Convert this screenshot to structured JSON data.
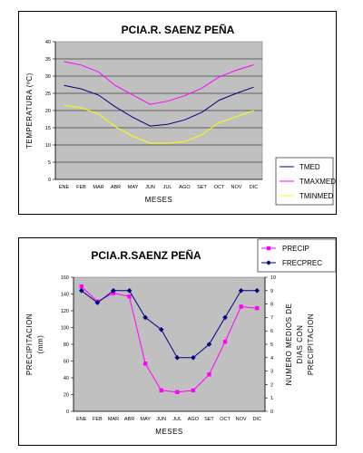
{
  "chart_data": [
    {
      "type": "line",
      "title": "PCIA.R. SAENZ PEÑA",
      "xlabel": "MESES",
      "ylabel": "TEMPERATURA (ºC)",
      "categories": [
        "ENE",
        "FEB",
        "MAR",
        "ABR",
        "MAY",
        "JUN",
        "JUL",
        "AGO",
        "SET",
        "OCT",
        "NOV",
        "DIC"
      ],
      "ylim": [
        0,
        40
      ],
      "yticks": [
        "0",
        "5",
        "10",
        "15",
        "20",
        "25",
        "30",
        "35",
        "40"
      ],
      "grid": true,
      "legend": "right",
      "series": [
        {
          "name": "TMED",
          "color": "#000080",
          "values": [
            27.3,
            26.3,
            24.5,
            21,
            18,
            15.5,
            16,
            17.3,
            19.5,
            23,
            25,
            26.8
          ]
        },
        {
          "name": "TMAXMED",
          "color": "#ff00ff",
          "values": [
            34.2,
            33.2,
            31.2,
            27.2,
            24.5,
            21.8,
            22.7,
            24.3,
            26.5,
            29.8,
            31.7,
            33.3
          ]
        },
        {
          "name": "TMINMED",
          "color": "#ffff00",
          "values": [
            21.5,
            20.8,
            19,
            15.2,
            12.5,
            10.5,
            10.5,
            11,
            13,
            16.5,
            18.2,
            20
          ]
        }
      ]
    },
    {
      "type": "line",
      "title": "PCIA.R.SAENZ PEÑA",
      "xlabel": "MESES",
      "ylabel": "PRECIPITACION\n(mm)",
      "ylabel_right": "NUMERO MEDIOS DE\nDIAS CON\nPRECIPITACION",
      "categories": [
        "ENE",
        "FEB",
        "MAR",
        "ABR",
        "MAY",
        "JUN",
        "JUL",
        "AGO",
        "SET",
        "OCT",
        "NOV",
        "DIC"
      ],
      "ylim": [
        0,
        160
      ],
      "yticks": [
        "0",
        "20",
        "40",
        "60",
        "80",
        "100",
        "120",
        "140",
        "160"
      ],
      "ylim_right": [
        0,
        10
      ],
      "yticks_right": [
        "0",
        "1",
        "2",
        "3",
        "4",
        "5",
        "6",
        "7",
        "8",
        "9",
        "10"
      ],
      "grid": false,
      "legend": "top-right",
      "series": [
        {
          "name": "PRECIP",
          "color": "#ff00ff",
          "axis": "left",
          "values": [
            149,
            131,
            141,
            137,
            57,
            25,
            23,
            25,
            44,
            83,
            125,
            123
          ]
        },
        {
          "name": "FRECPREC",
          "color": "#000080",
          "axis": "right",
          "values": [
            9,
            8.1,
            9,
            9,
            7,
            6.1,
            4,
            4,
            5,
            7,
            9,
            9
          ]
        }
      ]
    }
  ]
}
